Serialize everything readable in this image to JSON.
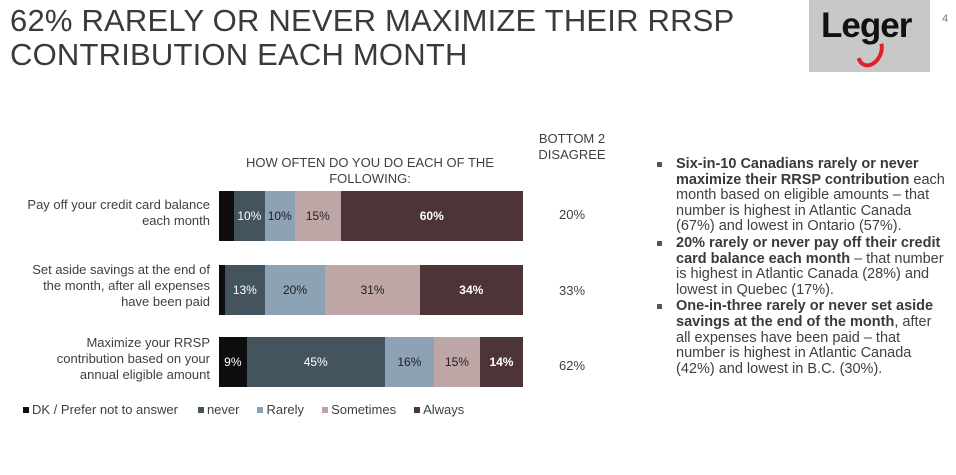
{
  "slide": {
    "title": "62% RARELY OR NEVER MAXIMIZE THEIR RRSP CONTRIBUTION EACH MONTH",
    "page_number": "4",
    "logo_text": "Leger"
  },
  "chart_data": {
    "type": "bar",
    "orientation": "horizontal-stacked-100",
    "title": "HOW OFTEN DO YOU DO EACH OF THE FOLLOWING:",
    "bottom2_header": "BOTTOM 2 DISAGREE",
    "categories": [
      "Pay off your credit card balance each month",
      "Set aside savings at the end of the month, after all expenses have been paid",
      "Maximize your RRSP contribution based on your annual eligible amount"
    ],
    "series": [
      {
        "name": "DK / Prefer not to answer",
        "color": "#0d0d0d",
        "values": [
          5,
          2,
          9
        ],
        "labels": [
          "",
          "",
          "9%"
        ]
      },
      {
        "name": "never",
        "color": "#44545f",
        "values": [
          10,
          13,
          45
        ],
        "labels": [
          "10%",
          "13%",
          "45%"
        ]
      },
      {
        "name": "Rarely",
        "color": "#8da2b4",
        "values": [
          10,
          20,
          16
        ],
        "labels": [
          "10%",
          "20%",
          "16%"
        ]
      },
      {
        "name": "Sometimes",
        "color": "#bfa6a6",
        "values": [
          15,
          31,
          15
        ],
        "labels": [
          "15%",
          "31%",
          "15%"
        ]
      },
      {
        "name": "Always",
        "color": "#4d3436",
        "values": [
          60,
          34,
          14
        ],
        "labels": [
          "60%",
          "34%",
          "14%"
        ]
      }
    ],
    "bottom2_values": [
      "20%",
      "33%",
      "62%"
    ]
  },
  "row_labels": [
    [
      "Pay off your credit card balance",
      "each month"
    ],
    [
      "Set aside savings at the end of",
      "the month, after all expenses",
      "have been paid"
    ],
    [
      "Maximize your RRSP",
      "contribution based on your",
      "annual eligible amount"
    ]
  ],
  "bullets": [
    {
      "bold": "Six-in-10 Canadians rarely or never maximize their RRSP contribution",
      "text": " each month based on eligible amounts – that number is highest in Atlantic Canada (67%) and lowest in Ontario (57%)."
    },
    {
      "bold": "20% rarely or never pay off their credit card balance each month",
      "text": " – that number is highest in Atlantic Canada (28%) and lowest in Quebec (17%)."
    },
    {
      "bold": "One-in-three rarely or never set aside savings at the end of the month",
      "text": ", after all expenses have been paid – that number is highest in Atlantic Canada (42%) and lowest in B.C. (30%)."
    }
  ]
}
